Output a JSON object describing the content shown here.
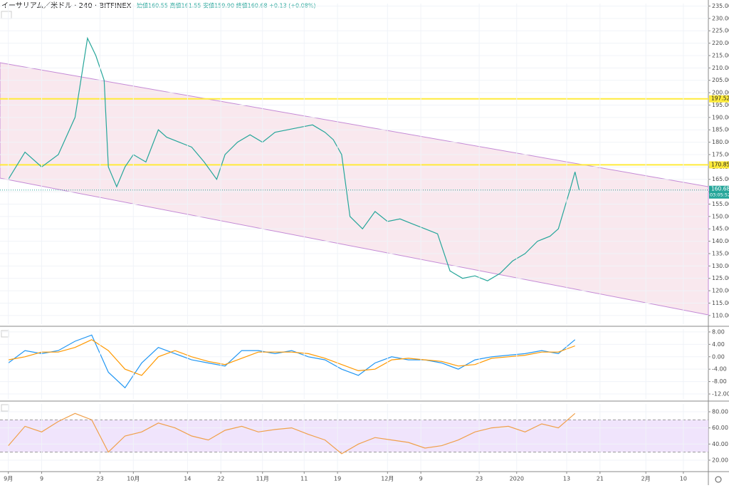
{
  "chart_data": [
    {
      "type": "line",
      "title": "イーサリアム／米ドル · 240 · BITFINEX",
      "subtitle": "始値160.55 高値161.55 安値159.90 終値160.68 +0.13 (+0.08%)",
      "color": "#26a69a",
      "x": [
        0,
        4,
        8,
        12,
        16,
        19,
        21,
        23,
        24,
        26,
        28,
        30,
        33,
        36,
        38,
        41,
        44,
        47,
        50,
        52,
        55,
        58,
        61,
        64,
        67,
        70,
        73,
        76,
        78,
        80,
        82,
        85,
        88,
        91,
        94,
        97,
        100,
        103,
        106,
        109,
        112,
        115,
        118,
        121,
        124,
        127,
        130,
        132,
        135,
        136,
        137
      ],
      "values": [
        165,
        176,
        170,
        175,
        190,
        222,
        215,
        205,
        170,
        162,
        170,
        175,
        172,
        185,
        182,
        180,
        178,
        172,
        165,
        175,
        180,
        183,
        180,
        184,
        185,
        186,
        187,
        184,
        181,
        175,
        150,
        145,
        152,
        148,
        149,
        147,
        145,
        143,
        128,
        125,
        126,
        124,
        127,
        132,
        135,
        140,
        142,
        145,
        162,
        168,
        160.68
      ],
      "xlim": [
        -2,
        168
      ],
      "ylim": [
        106.5,
        236
      ],
      "yticks": [
        {
          "value": 110,
          "label": "110.00"
        },
        {
          "value": 115,
          "label": "115.00"
        },
        {
          "value": 120,
          "label": "120.00"
        },
        {
          "value": 125,
          "label": "125.00"
        },
        {
          "value": 130,
          "label": "130.00"
        },
        {
          "value": 135,
          "label": "135.00"
        },
        {
          "value": 140,
          "label": "140.00"
        },
        {
          "value": 145,
          "label": "145.00"
        },
        {
          "value": 150,
          "label": "150.00"
        },
        {
          "value": 155,
          "label": "155.00"
        },
        {
          "value": 160,
          "label": "160.00"
        },
        {
          "value": 165,
          "label": "165.00"
        },
        {
          "value": 170,
          "label": "170.00"
        },
        {
          "value": 175,
          "label": "175.00"
        },
        {
          "value": 180,
          "label": "180.00"
        },
        {
          "value": 185,
          "label": "185.00"
        },
        {
          "value": 190,
          "label": "190.00"
        },
        {
          "value": 195,
          "label": "195.00"
        },
        {
          "value": 200,
          "label": "200.00"
        },
        {
          "value": 205,
          "label": "205.00"
        },
        {
          "value": 210,
          "label": "210.00"
        },
        {
          "value": 215,
          "label": "215.00"
        },
        {
          "value": 220,
          "label": "220.00"
        },
        {
          "value": 225,
          "label": "225.00"
        },
        {
          "value": 230,
          "label": "230.00"
        },
        {
          "value": 235,
          "label": "235.00"
        }
      ],
      "hlines": [
        {
          "value": 197.52,
          "label": "197.52",
          "color": "#ffeb3b"
        },
        {
          "value": 170.85,
          "label": "170.85",
          "color": "#ffeb3b"
        }
      ],
      "last_price": {
        "value": 160.68,
        "label": "160.68",
        "color": "#26a69a"
      },
      "countdown": "03:05:52",
      "grid": true
    },
    {
      "type": "line",
      "x": [
        0,
        4,
        8,
        12,
        16,
        20,
        24,
        28,
        32,
        36,
        40,
        44,
        48,
        52,
        56,
        60,
        64,
        68,
        72,
        76,
        80,
        84,
        88,
        92,
        96,
        100,
        104,
        108,
        112,
        116,
        120,
        124,
        128,
        132,
        136
      ],
      "series": [
        {
          "color": "#2196f3",
          "values": [
            -2,
            2,
            1,
            2,
            5,
            7,
            -5,
            -10,
            -2,
            3,
            1,
            -1,
            -2,
            -3,
            2,
            2,
            1,
            2,
            0,
            -1,
            -4,
            -6,
            -2,
            0,
            -1,
            -1,
            -2,
            -4,
            -1,
            0,
            0.5,
            1,
            2,
            1,
            5.5
          ]
        },
        {
          "color": "#ff9800",
          "values": [
            -1,
            0,
            1.5,
            1.5,
            3,
            5.5,
            2,
            -4,
            -6,
            0,
            2,
            0,
            -1.5,
            -2.5,
            -0.5,
            1.5,
            1.5,
            1.5,
            1,
            -0.5,
            -2.5,
            -4.5,
            -4,
            -1,
            -0.5,
            -1,
            -1.5,
            -3,
            -2.5,
            -0.5,
            0,
            0.5,
            1.5,
            1.5,
            3.5
          ]
        }
      ],
      "xlim": [
        -2,
        168
      ],
      "ylim": [
        -13.6,
        8.9
      ],
      "yticks": [
        {
          "value": 8,
          "label": "8.00"
        },
        {
          "value": 4,
          "label": "4.00"
        },
        {
          "value": 0,
          "label": "0.00"
        },
        {
          "value": -4,
          "label": "-4.00"
        },
        {
          "value": -8,
          "label": "-8.00"
        },
        {
          "value": -12,
          "label": "-12.00"
        }
      ],
      "grid": true
    },
    {
      "type": "line",
      "x": [
        0,
        4,
        8,
        12,
        16,
        20,
        24,
        28,
        32,
        36,
        40,
        44,
        48,
        52,
        56,
        60,
        64,
        68,
        72,
        76,
        80,
        84,
        88,
        92,
        96,
        100,
        104,
        108,
        112,
        116,
        120,
        124,
        128,
        132,
        136
      ],
      "series": [
        {
          "color": "#f0a04b",
          "values": [
            38,
            62,
            55,
            68,
            78,
            70,
            30,
            50,
            55,
            66,
            60,
            50,
            45,
            57,
            62,
            55,
            58,
            60,
            52,
            45,
            28,
            40,
            48,
            45,
            42,
            35,
            38,
            45,
            55,
            60,
            62,
            55,
            65,
            60,
            78
          ]
        }
      ],
      "band": [
        30,
        70
      ],
      "band_color": "#e9d8fb",
      "xlim": [
        -2,
        168
      ],
      "ylim": [
        7.6,
        89.7
      ],
      "yticks": [
        {
          "value": 80,
          "label": "80.00"
        },
        {
          "value": 60,
          "label": "60.00"
        },
        {
          "value": 40,
          "label": "40.00"
        },
        {
          "value": 20,
          "label": "20.00"
        }
      ],
      "xticks": [
        {
          "value": 0,
          "label": "9月"
        },
        {
          "value": 8,
          "label": "9"
        },
        {
          "value": 22,
          "label": "23"
        },
        {
          "value": 30,
          "label": "10月"
        },
        {
          "value": 43,
          "label": "14"
        },
        {
          "value": 51,
          "label": "22"
        },
        {
          "value": 61,
          "label": "11月"
        },
        {
          "value": 71,
          "label": "11"
        },
        {
          "value": 79,
          "label": "19"
        },
        {
          "value": 91,
          "label": "12月"
        },
        {
          "value": 99,
          "label": "9"
        },
        {
          "value": 113,
          "label": "23"
        },
        {
          "value": 122,
          "label": "2020"
        },
        {
          "value": 134,
          "label": "13"
        },
        {
          "value": 142,
          "label": "21"
        },
        {
          "value": 153,
          "label": "2月"
        },
        {
          "value": 162,
          "label": "10"
        }
      ],
      "grid": true
    }
  ]
}
